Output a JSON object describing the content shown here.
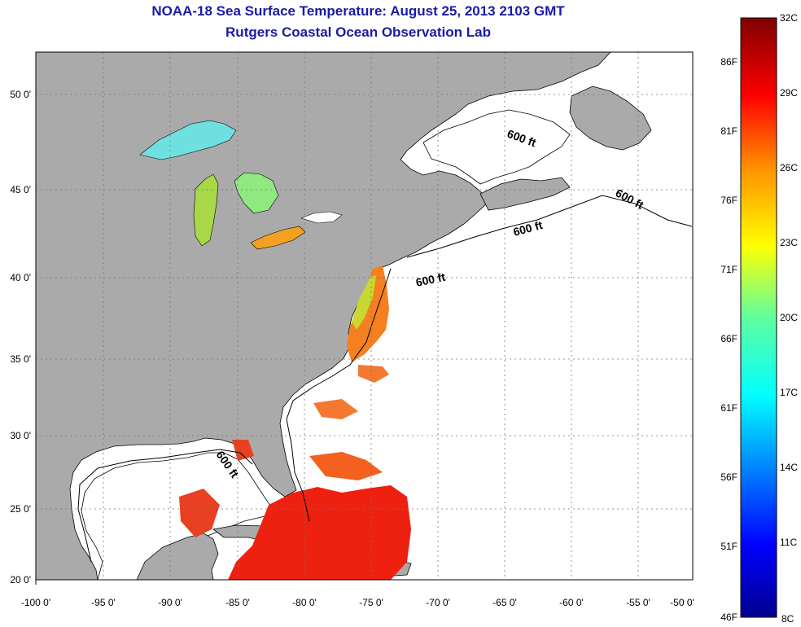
{
  "header": {
    "title_line1": "NOAA-18 Sea Surface Temperature:  August 25, 2013 2103 GMT",
    "title_line2": "Rutgers Coastal Ocean Observation Lab"
  },
  "axes": {
    "lon_ticks": [
      "-100 0'",
      "-95 0'",
      "-90 0'",
      "-85 0'",
      "-80 0'",
      "-75 0'",
      "-70 0'",
      "-65 0'",
      "-60 0'",
      "-55 0'",
      "-50 0'"
    ],
    "lat_ticks": [
      "50 0'",
      "45 0'",
      "40 0'",
      "35 0'",
      "30 0'",
      "25 0'",
      "20 0'"
    ]
  },
  "colorbar": {
    "celsius": [
      "32C",
      "29C",
      "26C",
      "23C",
      "20C",
      "17C",
      "14C",
      "11C",
      "8C"
    ],
    "fahrenheit": [
      "86F",
      "81F",
      "76F",
      "71F",
      "66F",
      "61F",
      "56F",
      "51F",
      "46F"
    ]
  },
  "depth_labels": [
    "600 ft",
    "600 ft",
    "600 ft",
    "600 ft",
    "600 ft"
  ],
  "colors": {
    "land": "#aaaaaa",
    "ocean": "#ffffff",
    "title": "#1a1aa8",
    "grid": "#777777"
  }
}
